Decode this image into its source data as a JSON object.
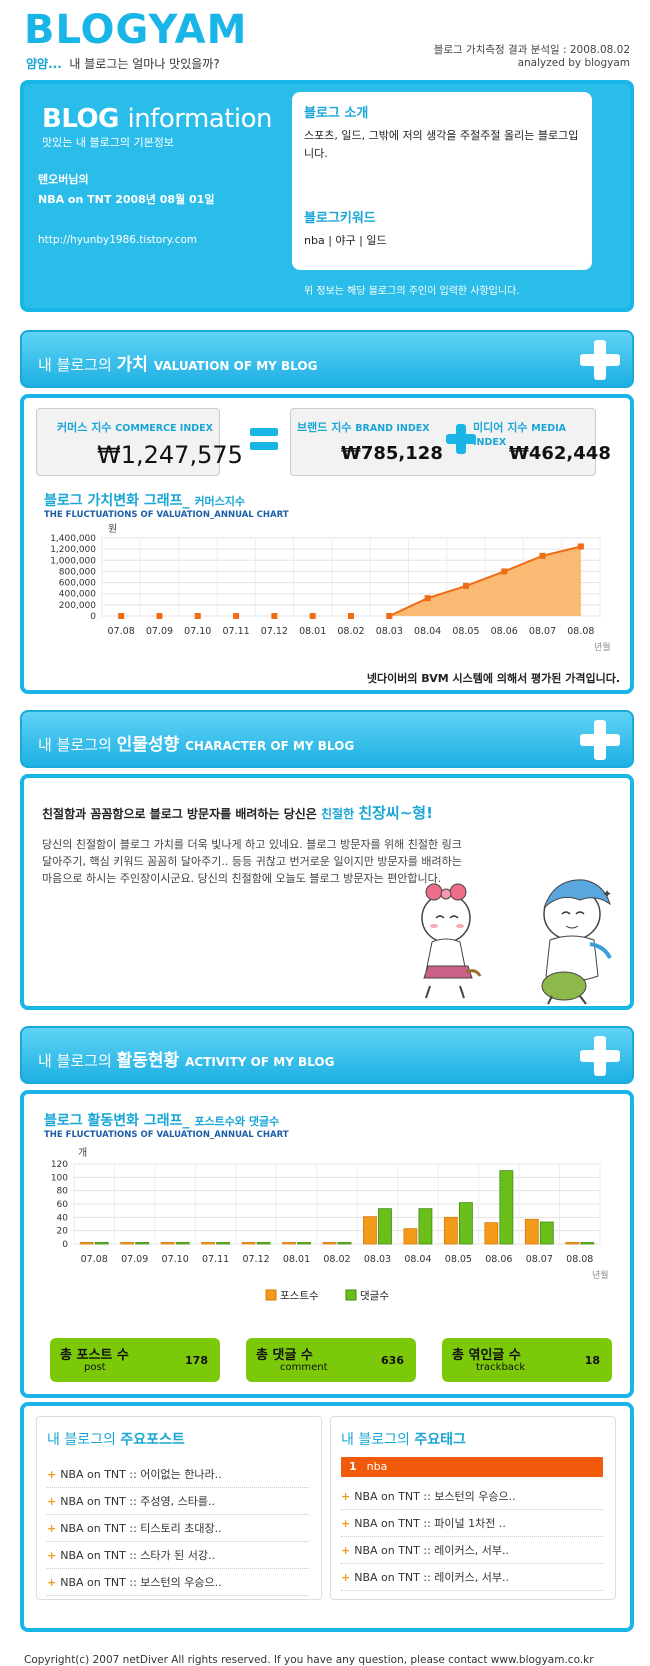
{
  "header": {
    "logo": "BLOGYAM",
    "tagline_prefix": "얌얌...",
    "tagline_rest": "내 블로그는 얼마나 맛있을까?",
    "analysis_date": "블로그 가치측정 결과 분석일 : 2008.08.02",
    "analyzed_by": "analyzed by blogyam"
  },
  "blog_info": {
    "title_bold": "BLOG",
    "title_rest": "information",
    "subtitle": "맛있는 내 블로그의 기본정보",
    "owner": "텐오버님의",
    "blog_name_date": "NBA on TNT 2008년 08월 01일",
    "url": "http://hyunby1986.tistory.com",
    "intro_heading": "블로그 소개",
    "intro_text": "스포츠, 일드, 그밖에 저의 생각을 주절주절 올리는 블로그입니다.",
    "keyword_heading": "블로그키워드",
    "keywords": "nba | 야구 | 일드",
    "note": "위 정보는 해당 블로그의 주인이 입력한 사항입니다."
  },
  "valuation": {
    "section_label_pre": "내 블로그의",
    "section_label_bold": "가치",
    "section_label_en": "VALUATION OF MY BLOG",
    "commerce_label": "커머스 지수",
    "commerce_en": "COMMERCE INDEX",
    "commerce_value": "₩1,247,575",
    "brand_label": "브랜드 지수",
    "brand_en": "BRAND INDEX",
    "brand_value": "₩785,128",
    "media_label": "미디어 지수",
    "media_en": "MEDIA INDEX",
    "media_value": "₩462,448",
    "chart_title": "블로그 가치변화 그래프_",
    "chart_title_small": "커머스지수",
    "chart_subtitle": "THE FLUCTUATIONS OF VALUATION_ANNUAL CHART",
    "footnote": "넷다이버의 BVM 시스템에 의해서 평가된 가격입니다."
  },
  "character": {
    "section_label_pre": "내 블로그의",
    "section_label_bold": "인물성향",
    "section_label_en": "CHARACTER OF MY BLOG",
    "headline_pre": "친절함과 꼼꼼함으로 블로그 방문자를 배려하는 당신은",
    "headline_c1": "친절한",
    "headline_c2": "친장씨~형!",
    "body": "당신의 친절함이 블로그 가치를 더욱 빛나게 하고 있네요. 블로그 방문자를 위해 친절한 링크 달아주기, 핵심 키워드 꼼꼼히 달아주기.. 등등 귀찮고 번거로운 일이지만 방문자를 배려하는 마음으로 하시는 주인장이시군요. 당신의 친절함에 오늘도 블로그 방문자는 편안합니다."
  },
  "activity": {
    "section_label_pre": "내 블로그의",
    "section_label_bold": "활동현황",
    "section_label_en": "ACTIVITY OF MY BLOG",
    "chart_title": "블로그 활동변화 그래프_",
    "chart_title_small": "포스트수와 댓글수",
    "chart_subtitle": "THE FLUCTUATIONS OF VALUATION_ANNUAL CHART",
    "stats": [
      {
        "label": "총 포스트 수",
        "sub": "post",
        "value": "178"
      },
      {
        "label": "총 댓글 수",
        "sub": "comment",
        "value": "636"
      },
      {
        "label": "총 엮인글 수",
        "sub": "trackback",
        "value": "18"
      }
    ]
  },
  "lists": {
    "posts_title_pre": "내 블로그의",
    "posts_title_bold": "주요포스트",
    "posts": [
      "NBA on TNT :: 어이없는 한나라..",
      "NBA on TNT :: 주성영, 스타를..",
      "NBA on TNT :: 티스토리 초대장..",
      "NBA on TNT :: 스타가 된 서강..",
      "NBA on TNT :: 보스턴의 우승으.."
    ],
    "tags_title_pre": "내 블로그의",
    "tags_title_bold": "주요태그",
    "top_tag_rank": "1",
    "top_tag": "nba",
    "tag_posts": [
      "NBA on TNT :: 보스턴의 우승으..",
      "NBA on TNT :: 파이널 1차전 ..",
      "NBA on TNT :: 레이커스, 서부..",
      "NBA on TNT :: 레이커스, 서부.."
    ]
  },
  "footer": "Copyright(c) 2007 netDiver All rights reserved. If you have any question, please contact www.blogyam.co.kr",
  "colors": {
    "accent": "#19b5e6",
    "orange": "#f39a1a",
    "green": "#6abf1a"
  },
  "chart_data": [
    {
      "type": "area",
      "y_unit": "원",
      "x_unit": "년월",
      "categories": [
        "07.08",
        "07.09",
        "07.10",
        "07.11",
        "07.12",
        "08.01",
        "08.02",
        "08.03",
        "08.04",
        "08.05",
        "08.06",
        "08.07",
        "08.08"
      ],
      "values": [
        0,
        0,
        0,
        0,
        0,
        0,
        0,
        0,
        320000,
        540000,
        800000,
        1080000,
        1247575
      ],
      "ylim": [
        0,
        1400000
      ],
      "yticks": [
        "1,400,000",
        "1,200,000",
        "1,000,000",
        "800,000",
        "600,000",
        "400,000",
        "200,000",
        "0"
      ],
      "grid": true
    },
    {
      "type": "bar",
      "y_unit": "개",
      "x_unit": "년월",
      "categories": [
        "07.08",
        "07.09",
        "07.10",
        "07.11",
        "07.12",
        "08.01",
        "08.02",
        "08.03",
        "08.04",
        "08.05",
        "08.06",
        "08.07",
        "08.08"
      ],
      "series": [
        {
          "name": "포스트수",
          "values": [
            0,
            0,
            0,
            0,
            0,
            0,
            0,
            41,
            23,
            40,
            32,
            37,
            0
          ]
        },
        {
          "name": "댓글수",
          "values": [
            0,
            0,
            0,
            0,
            0,
            0,
            0,
            53,
            53,
            62,
            110,
            33,
            0
          ]
        }
      ],
      "ylim": [
        0,
        120
      ],
      "yticks": [
        "120",
        "100",
        "80",
        "60",
        "40",
        "20",
        "0"
      ],
      "grid": true,
      "legend": "bottom"
    }
  ]
}
